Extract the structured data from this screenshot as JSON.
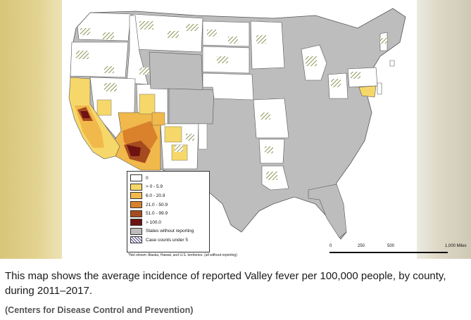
{
  "legend": {
    "items": [
      {
        "label": "0",
        "color": "#ffffff",
        "pattern": false
      },
      {
        "label": "> 0 - 5.9",
        "color": "#f6d86a",
        "pattern": false
      },
      {
        "label": "6.0 - 20.9",
        "color": "#f1b84b",
        "pattern": false
      },
      {
        "label": "21.0 - 50.9",
        "color": "#d9822b",
        "pattern": false
      },
      {
        "label": "51.0 - 99.9",
        "color": "#a64b1f",
        "pattern": false
      },
      {
        "label": "> 100.0",
        "color": "#6e1212",
        "pattern": false
      },
      {
        "label": "States without reporting",
        "color": "#bdbdbd",
        "pattern": false
      },
      {
        "label": "Case counts under 5",
        "color": "#ffffff",
        "pattern": true
      }
    ]
  },
  "footnote": "*Not shown: Alaska, Hawaii, and U.S. territories. (all without reporting)",
  "scale": {
    "ticks": [
      "0",
      "250",
      "500",
      "1,000 Miles"
    ]
  },
  "caption": "This map shows the average incidence of reported Valley fever per 100,000 people, by county, during 2011–2017.",
  "credit": "(Centers for Disease Control and Prevention)",
  "colors": {
    "no_report": "#bdbdbd",
    "zero": "#ffffff",
    "low": "#f6d86a",
    "mid": "#f1b84b",
    "high": "#d9822b",
    "vhigh": "#a64b1f",
    "max": "#6e1212",
    "hatch": "#6b7a2a"
  }
}
